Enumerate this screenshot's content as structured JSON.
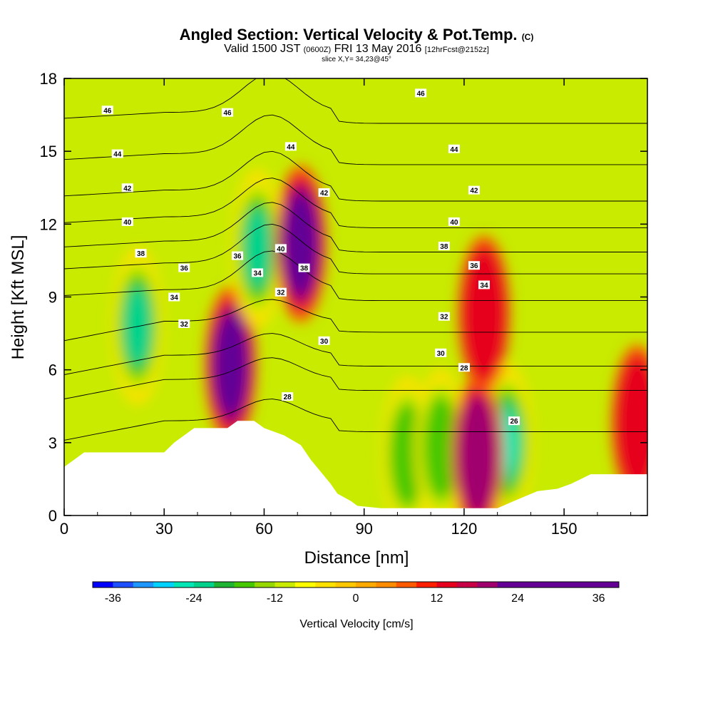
{
  "header": {
    "title": "Angled Section: Vertical Velocity & Pot.Temp.",
    "title_mark": "(C)",
    "valid_a": "Valid 1500 JST",
    "valid_b": "(0600Z)",
    "valid_c": "FRI 13 May 2016",
    "valid_d": "[12hrFcst@2152z]",
    "slice": "slice X,Y= 34,23@45°"
  },
  "chart_data": {
    "type": "heatmap",
    "title": "Angled Section: Vertical Velocity & Pot.Temp.",
    "xlabel": "Distance [nm]",
    "ylabel": "Height [Kft MSL]",
    "xlim": [
      0,
      175
    ],
    "ylim": [
      0,
      18
    ],
    "x_ticks": [
      "0",
      "30",
      "60",
      "90",
      "120",
      "150"
    ],
    "x_tick_values": [
      0,
      30,
      60,
      90,
      120,
      150
    ],
    "y_ticks": [
      "0",
      "3",
      "6",
      "9",
      "12",
      "15",
      "18"
    ],
    "y_tick_values": [
      0,
      3,
      6,
      9,
      12,
      15,
      18
    ],
    "colorbar": {
      "label": "Vertical Velocity [cm/s]",
      "ticks": [
        "-36",
        "-24",
        "-12",
        "0",
        "12",
        "24",
        "36"
      ],
      "tick_values": [
        -36,
        -24,
        -12,
        0,
        12,
        24,
        36
      ],
      "min": -39,
      "max": 39,
      "step": 3,
      "colors": [
        "#0000ff",
        "#1e50ff",
        "#1e96ff",
        "#00d2ff",
        "#00e6b4",
        "#00d28c",
        "#1eb432",
        "#46c800",
        "#96d700",
        "#c8eb00",
        "#ffff00",
        "#ffe100",
        "#ffc800",
        "#ffaa00",
        "#ff8c00",
        "#ff5a00",
        "#ff1e00",
        "#e6001e",
        "#c80046",
        "#a0006e",
        "#640096"
      ]
    },
    "vertical_velocity_features": [
      {
        "x": 50,
        "y": 6.2,
        "value": 39
      },
      {
        "x": 58,
        "y": 11.0,
        "value": -24
      },
      {
        "x": 22,
        "y": 7.8,
        "value": -24
      },
      {
        "x": 103,
        "y": 2.5,
        "value": -21
      },
      {
        "x": 113,
        "y": 2.8,
        "value": -21
      },
      {
        "x": 133,
        "y": 3.0,
        "value": -27
      },
      {
        "x": 71,
        "y": 11.2,
        "value": 24
      },
      {
        "x": 124,
        "y": 2.5,
        "value": 18
      },
      {
        "x": 126,
        "y": 8.3,
        "value": 12
      },
      {
        "x": 172,
        "y": 3.8,
        "value": 12
      }
    ],
    "theta_contour_labels": [
      {
        "text": "46",
        "x": 13,
        "y": 16.7
      },
      {
        "text": "46",
        "x": 49,
        "y": 16.6
      },
      {
        "text": "46",
        "x": 107,
        "y": 17.4
      },
      {
        "text": "44",
        "x": 16,
        "y": 14.9
      },
      {
        "text": "44",
        "x": 68,
        "y": 15.2
      },
      {
        "text": "44",
        "x": 117,
        "y": 15.1
      },
      {
        "text": "42",
        "x": 19,
        "y": 13.5
      },
      {
        "text": "42",
        "x": 78,
        "y": 13.3
      },
      {
        "text": "42",
        "x": 123,
        "y": 13.4
      },
      {
        "text": "40",
        "x": 19,
        "y": 12.1
      },
      {
        "text": "40",
        "x": 65,
        "y": 11.0
      },
      {
        "text": "40",
        "x": 117,
        "y": 12.1
      },
      {
        "text": "38",
        "x": 23,
        "y": 10.8
      },
      {
        "text": "38",
        "x": 72,
        "y": 10.2
      },
      {
        "text": "38",
        "x": 114,
        "y": 11.1
      },
      {
        "text": "36",
        "x": 36,
        "y": 10.2
      },
      {
        "text": "36",
        "x": 52,
        "y": 10.7
      },
      {
        "text": "36",
        "x": 123,
        "y": 10.3
      },
      {
        "text": "34",
        "x": 33,
        "y": 9.0
      },
      {
        "text": "34",
        "x": 58,
        "y": 10.0
      },
      {
        "text": "34",
        "x": 126,
        "y": 9.5
      },
      {
        "text": "32",
        "x": 36,
        "y": 7.9
      },
      {
        "text": "32",
        "x": 65,
        "y": 9.2
      },
      {
        "text": "32",
        "x": 114,
        "y": 8.2
      },
      {
        "text": "30",
        "x": 78,
        "y": 7.2
      },
      {
        "text": "30",
        "x": 113,
        "y": 6.7
      },
      {
        "text": "28",
        "x": 67,
        "y": 4.9
      },
      {
        "text": "28",
        "x": 120,
        "y": 6.1
      },
      {
        "text": "26",
        "x": 135,
        "y": 3.9
      }
    ],
    "terrain_top": [
      [
        0,
        2
      ],
      [
        3,
        2.3
      ],
      [
        6,
        2.6
      ],
      [
        30,
        2.6
      ],
      [
        33,
        3.0
      ],
      [
        36,
        3.3
      ],
      [
        39,
        3.6
      ],
      [
        49,
        3.6
      ],
      [
        52,
        3.9
      ],
      [
        57,
        3.9
      ],
      [
        60,
        3.6
      ],
      [
        66,
        3.3
      ],
      [
        71,
        2.9
      ],
      [
        74,
        2.3
      ],
      [
        77,
        1.8
      ],
      [
        80,
        1.3
      ],
      [
        82,
        0.9
      ],
      [
        86,
        0.6
      ],
      [
        88,
        0.4
      ],
      [
        95,
        0.3
      ],
      [
        130,
        0.3
      ],
      [
        135,
        0.6
      ],
      [
        142,
        1.0
      ],
      [
        148,
        1.1
      ],
      [
        152,
        1.3
      ],
      [
        158,
        1.7
      ],
      [
        175,
        1.7
      ]
    ]
  }
}
